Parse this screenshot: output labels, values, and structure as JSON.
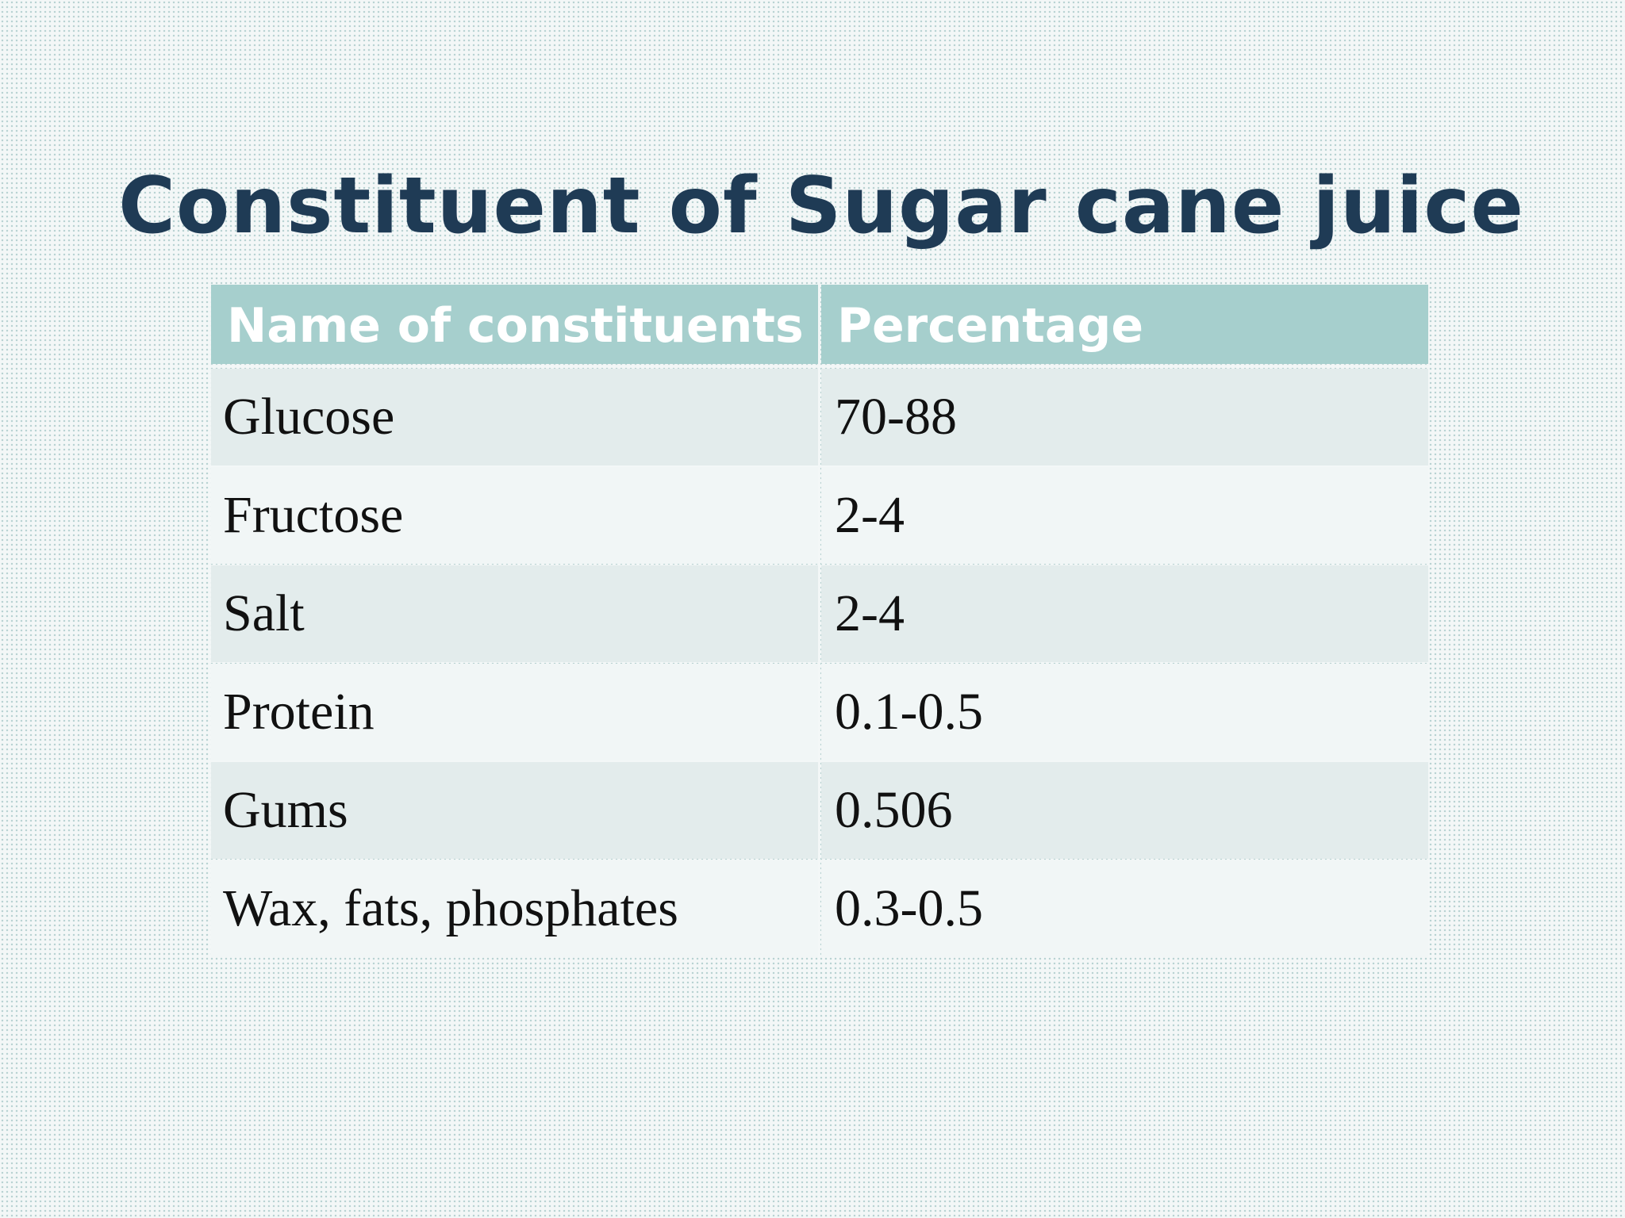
{
  "slide": {
    "title": "Constituent of Sugar cane juice"
  },
  "table": {
    "headers": [
      "Name of constituents",
      "Percentage"
    ],
    "rows": [
      [
        "Glucose",
        "70-88"
      ],
      [
        "Fructose",
        "2-4"
      ],
      [
        "Salt",
        "2-4"
      ],
      [
        "Protein",
        "0.1-0.5"
      ],
      [
        "Gums",
        "0.506"
      ],
      [
        "Wax, fats, phosphates",
        "0.3-0.5"
      ]
    ]
  },
  "colors": {
    "title": "#1f3b55",
    "header_fill": "#a6cfcd",
    "row_odd": "#e3ecec",
    "row_even": "#f1f6f6"
  }
}
